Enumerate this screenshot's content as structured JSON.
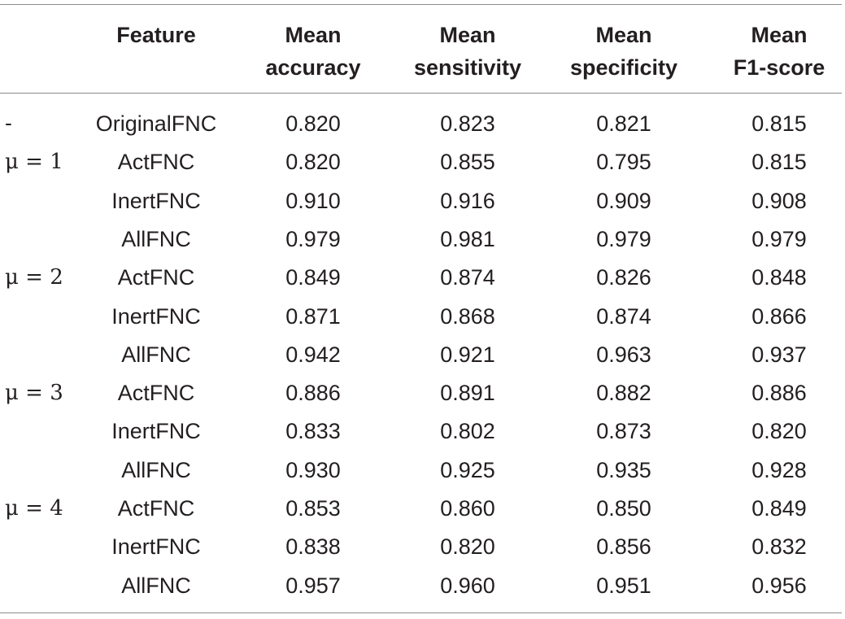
{
  "table": {
    "headers": [
      {
        "line1": "",
        "line2": ""
      },
      {
        "line1": "Feature",
        "line2": ""
      },
      {
        "line1": "Mean",
        "line2": "accuracy"
      },
      {
        "line1": "Mean",
        "line2": "sensitivity"
      },
      {
        "line1": "Mean",
        "line2": "specificity"
      },
      {
        "line1": "Mean",
        "line2": "F1-score"
      }
    ],
    "rows": [
      {
        "group": "-",
        "feature": "OriginalFNC",
        "accuracy": "0.820",
        "sensitivity": "0.823",
        "specificity": "0.821",
        "f1": "0.815"
      },
      {
        "group": "μ = 1",
        "feature": "ActFNC",
        "accuracy": "0.820",
        "sensitivity": "0.855",
        "specificity": "0.795",
        "f1": "0.815"
      },
      {
        "group": "",
        "feature": "InertFNC",
        "accuracy": "0.910",
        "sensitivity": "0.916",
        "specificity": "0.909",
        "f1": "0.908"
      },
      {
        "group": "",
        "feature": "AllFNC",
        "accuracy": "0.979",
        "sensitivity": "0.981",
        "specificity": "0.979",
        "f1": "0.979"
      },
      {
        "group": "μ = 2",
        "feature": "ActFNC",
        "accuracy": "0.849",
        "sensitivity": "0.874",
        "specificity": "0.826",
        "f1": "0.848"
      },
      {
        "group": "",
        "feature": "InertFNC",
        "accuracy": "0.871",
        "sensitivity": "0.868",
        "specificity": "0.874",
        "f1": "0.866"
      },
      {
        "group": "",
        "feature": "AllFNC",
        "accuracy": "0.942",
        "sensitivity": "0.921",
        "specificity": "0.963",
        "f1": "0.937"
      },
      {
        "group": "μ = 3",
        "feature": "ActFNC",
        "accuracy": "0.886",
        "sensitivity": "0.891",
        "specificity": "0.882",
        "f1": "0.886"
      },
      {
        "group": "",
        "feature": "InertFNC",
        "accuracy": "0.833",
        "sensitivity": "0.802",
        "specificity": "0.873",
        "f1": "0.820"
      },
      {
        "group": "",
        "feature": "AllFNC",
        "accuracy": "0.930",
        "sensitivity": "0.925",
        "specificity": "0.935",
        "f1": "0.928"
      },
      {
        "group": "μ = 4",
        "feature": "ActFNC",
        "accuracy": "0.853",
        "sensitivity": "0.860",
        "specificity": "0.850",
        "f1": "0.849"
      },
      {
        "group": "",
        "feature": "InertFNC",
        "accuracy": "0.838",
        "sensitivity": "0.820",
        "specificity": "0.856",
        "f1": "0.832"
      },
      {
        "group": "",
        "feature": "AllFNC",
        "accuracy": "0.957",
        "sensitivity": "0.960",
        "specificity": "0.951",
        "f1": "0.956"
      }
    ]
  }
}
